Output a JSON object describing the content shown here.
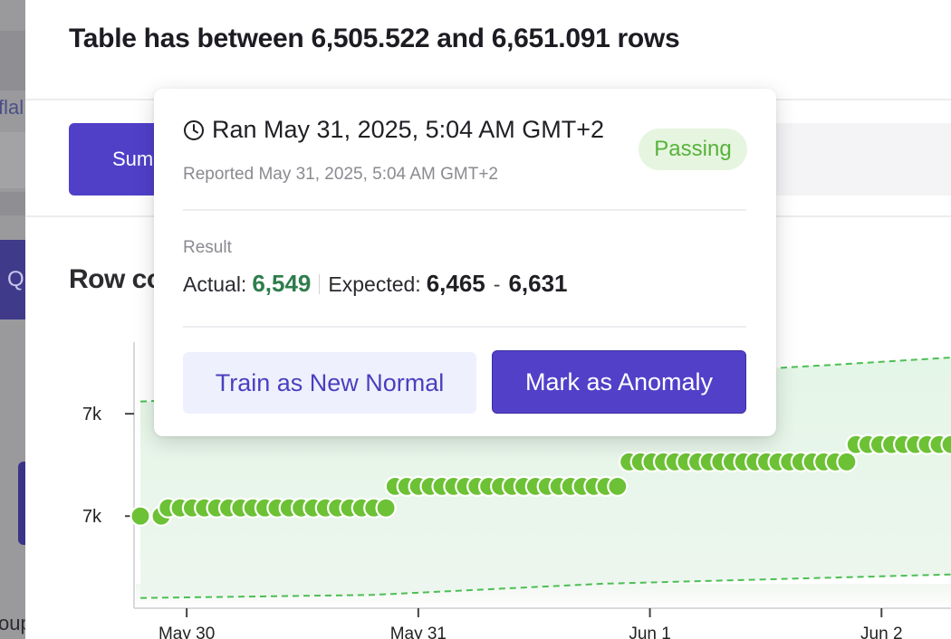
{
  "background_app": {
    "fragment_top": "flal",
    "fragment_mid": "Q",
    "fragment_bottom": "oup"
  },
  "header": {
    "title": "Table has between 6,505.522 and 6,651.091 rows"
  },
  "tabs": {
    "active_label": "Sum"
  },
  "section": {
    "title": "Row co"
  },
  "popover": {
    "ran": "Ran May 31, 2025, 5:04 AM GMT+2",
    "reported": "Reported May 31, 2025, 5:04 AM GMT+2",
    "status": "Passing",
    "result_label": "Result",
    "actual_label": "Actual:",
    "actual_value": "6,549",
    "expected_label": "Expected:",
    "expected_low": "6,465",
    "dash": "-",
    "expected_high": "6,631",
    "train_button": "Train as New Normal",
    "anomaly_button": "Mark as Anomaly"
  },
  "colors": {
    "accent": "#5040c8",
    "passing": "#58b23c",
    "point_fill": "#6cc135",
    "band_fill": "#e6f7e8",
    "band_line": "#4cbf54"
  },
  "chart_data": {
    "type": "scatter",
    "title": "",
    "xlabel": "",
    "ylabel": "",
    "ytick_labels": [
      "7k",
      "7k"
    ],
    "xtick_labels": [
      "May 30",
      "May 31",
      "Jun 1",
      "Jun 2"
    ],
    "x_day_range": [
      29.8,
      33.3
    ],
    "ylim": [
      6430,
      6690
    ],
    "series": [
      {
        "steps": [
          {
            "x_start": 29.8,
            "x_end": 29.89,
            "y": 6520,
            "count": 2
          },
          {
            "x_start": 29.92,
            "x_end": 30.86,
            "y": 6528,
            "count": 19
          },
          {
            "x_start": 30.9,
            "x_end": 31.86,
            "y": 6549,
            "count": 20
          },
          {
            "x_start": 31.91,
            "x_end": 32.85,
            "y": 6573,
            "count": 20
          },
          {
            "x_start": 32.89,
            "x_end": 33.3,
            "y": 6590,
            "count": 9
          }
        ],
        "lower_bound": [
          [
            29.8,
            6440
          ],
          [
            30.8,
            6443
          ],
          [
            31.8,
            6454
          ],
          [
            32.8,
            6460
          ],
          [
            33.3,
            6463
          ]
        ],
        "upper_bound": [
          [
            29.8,
            6632
          ],
          [
            30.8,
            6640
          ],
          [
            31.8,
            6655
          ],
          [
            32.8,
            6668
          ],
          [
            33.3,
            6675
          ]
        ]
      }
    ],
    "grid": false,
    "legend": "none"
  }
}
